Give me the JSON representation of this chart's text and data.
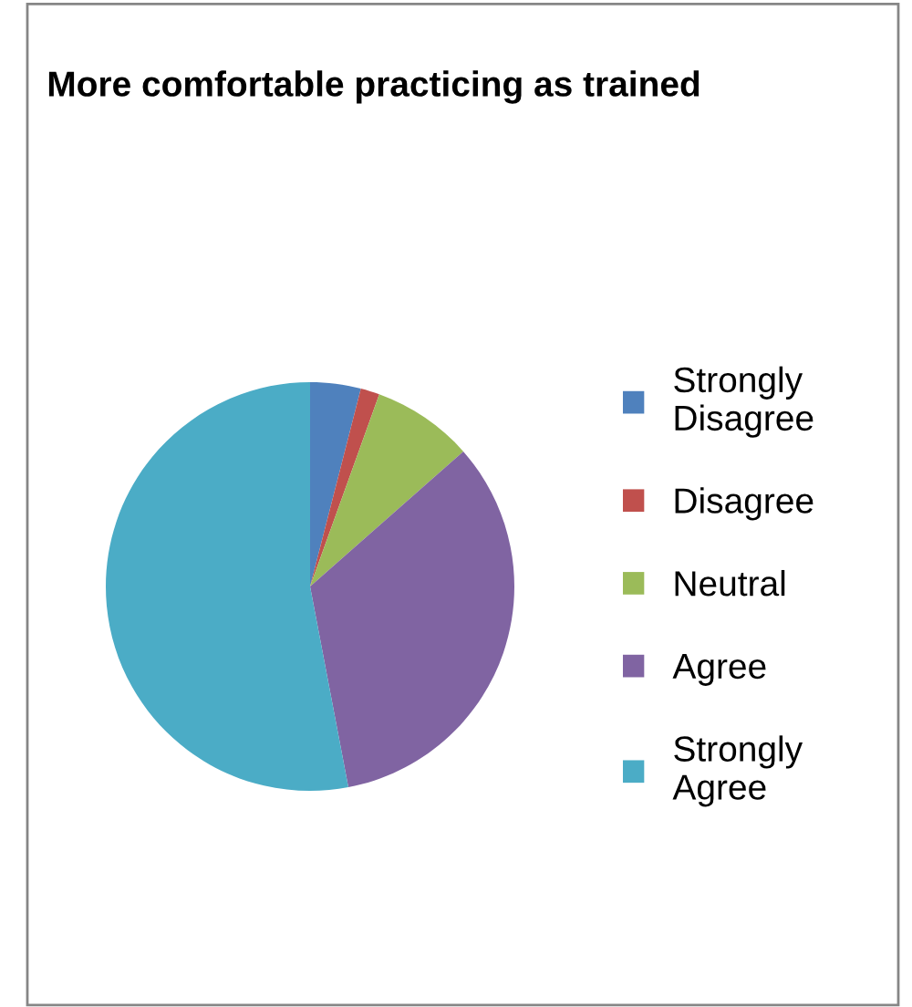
{
  "chart_data": {
    "type": "pie",
    "title": "More comfortable practicing as trained",
    "categories": [
      "Strongly Disagree",
      "Disagree",
      "Neutral",
      "Agree",
      "Strongly Agree"
    ],
    "values": [
      4,
      1.5,
      8,
      33.5,
      53
    ],
    "colors": [
      "#4f81bd",
      "#c0504d",
      "#9bbb59",
      "#8064a2",
      "#4bacc6"
    ],
    "legend": "right"
  }
}
